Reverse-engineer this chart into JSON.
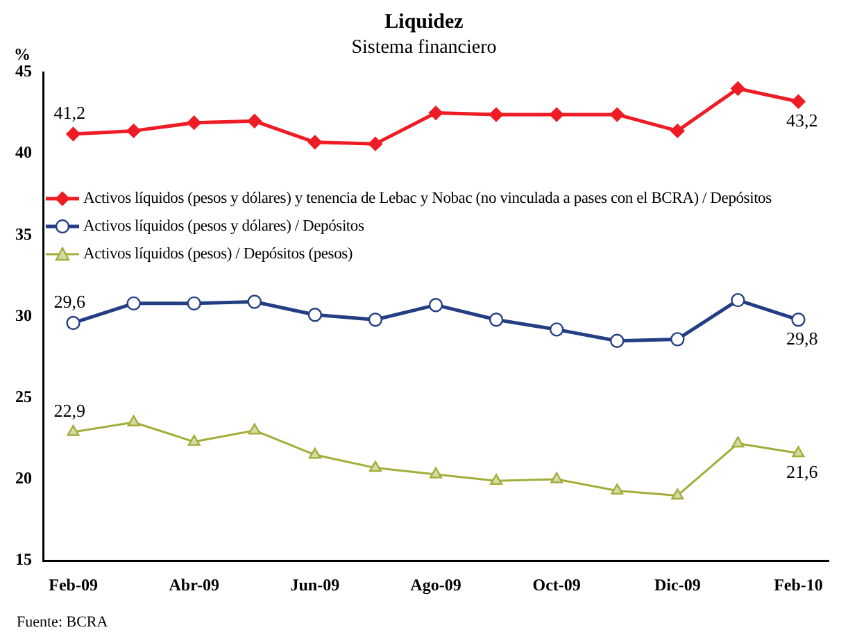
{
  "chart_data": {
    "type": "line",
    "title": "Liquidez",
    "subtitle": "Sistema financiero",
    "ylabel": "%",
    "categories": [
      "Feb-09",
      null,
      "Abr-09",
      null,
      "Jun-09",
      null,
      "Ago-09",
      null,
      "Oct-09",
      null,
      "Dic-09",
      null,
      "Feb-10"
    ],
    "series": [
      {
        "name": "Activos líquidos (pesos y dólares) y tenencia de Lebac y Nobac (no vinculada a pases con el BCRA) / Depósitos",
        "color": "#ee1c25",
        "marker": "diamond",
        "values": [
          41.2,
          41.4,
          41.9,
          42.0,
          40.7,
          40.6,
          42.5,
          42.4,
          42.4,
          42.4,
          41.4,
          44.0,
          43.2
        ],
        "value_labels": [
          "41,2",
          null,
          null,
          null,
          null,
          null,
          null,
          null,
          null,
          null,
          null,
          null,
          "43,2"
        ]
      },
      {
        "name": "Activos líquidos (pesos y dólares) / Depósitos",
        "color": "#233e83",
        "marker": "circle",
        "values": [
          29.6,
          30.8,
          30.8,
          30.9,
          30.1,
          29.8,
          30.7,
          29.8,
          29.2,
          28.5,
          28.6,
          31.0,
          29.8
        ],
        "value_labels": [
          "29,6",
          null,
          null,
          null,
          null,
          null,
          null,
          null,
          null,
          null,
          null,
          null,
          "29,8"
        ]
      },
      {
        "name": "Activos líquidos (pesos) / Depósitos (pesos)",
        "color": "#a3ad38",
        "marker": "triangle",
        "values": [
          22.9,
          23.5,
          22.3,
          23.0,
          21.5,
          20.7,
          20.3,
          19.9,
          20.0,
          19.3,
          19.0,
          22.2,
          21.6
        ],
        "value_labels": [
          "22,9",
          null,
          null,
          null,
          null,
          null,
          null,
          null,
          null,
          null,
          null,
          null,
          "21,6"
        ]
      }
    ],
    "ylim": [
      15,
      45
    ],
    "yticks": [
      15,
      20,
      25,
      30,
      35,
      40,
      45
    ],
    "grid": false,
    "legend": "left",
    "annotations": [
      "Fuente: BCRA"
    ]
  }
}
